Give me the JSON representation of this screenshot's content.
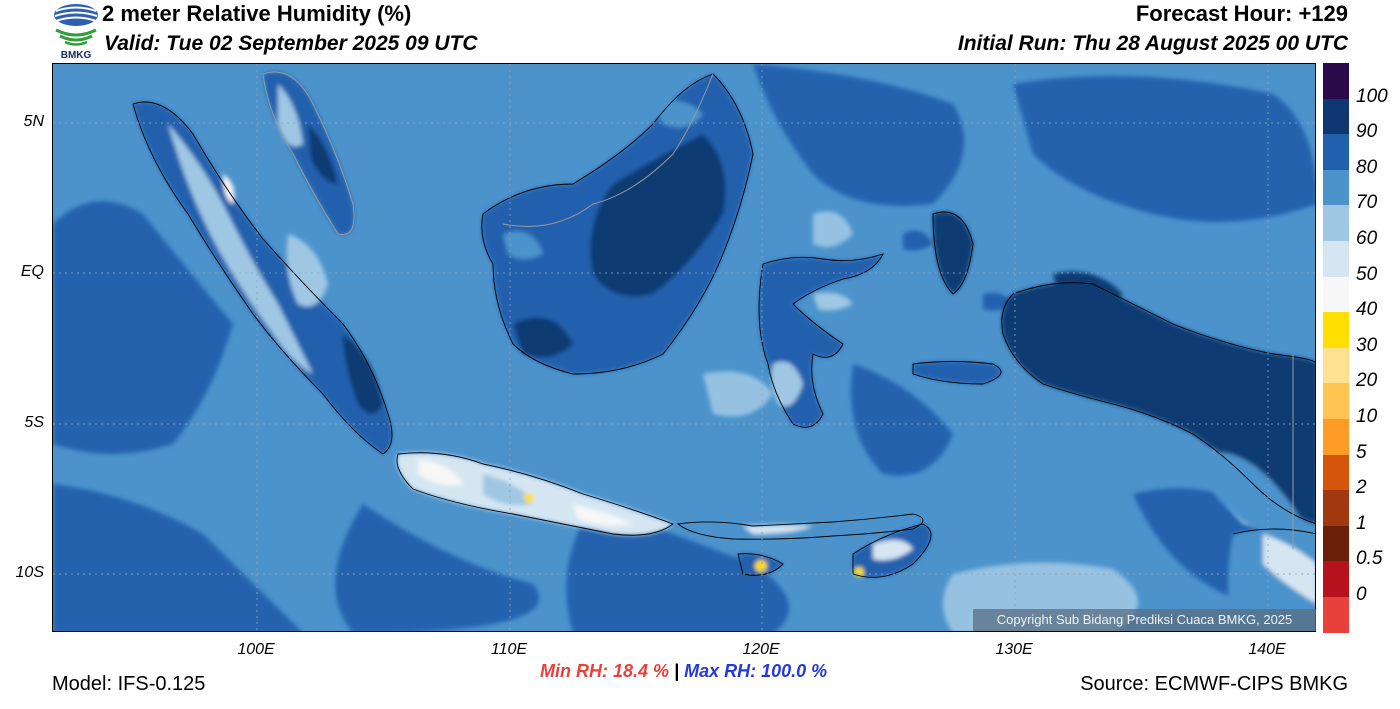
{
  "header": {
    "title": "2 meter Relative Humidity (%)",
    "valid": "Valid: Tue 02 September 2025 09 UTC",
    "forecast_hour": "Forecast Hour: +129",
    "initial_run": "Initial Run: Thu 28 August 2025 00 UTC",
    "logo_text": "BMKG"
  },
  "map": {
    "lat_labels": [
      "5N",
      "EQ",
      "5S",
      "10S"
    ],
    "lon_labels": [
      "100E",
      "110E",
      "120E",
      "130E",
      "140E"
    ],
    "ocean_color": "#4c93cc",
    "land_wet_color": "#1f63ad",
    "land_very_wet_color": "#103a72",
    "land_dry_color": "#9fc7e4",
    "grid": "dotted",
    "copyright": "Copyright Sub Bidang Prediksi Cuaca BMKG, 2025"
  },
  "colorbar": {
    "labels": [
      "100",
      "90",
      "80",
      "70",
      "60",
      "50",
      "40",
      "30",
      "20",
      "10",
      "5",
      "2",
      "1",
      "0.5",
      "0"
    ],
    "colors": [
      "#2a0a4a",
      "#0f3872",
      "#2060ad",
      "#4c93cc",
      "#9fc7e4",
      "#d5e6f2",
      "#f7f7f7",
      "#ffde00",
      "#ffe291",
      "#ffc451",
      "#ff9c26",
      "#d6550c",
      "#a03810",
      "#6b2008",
      "#b5121b",
      "#e8413c"
    ]
  },
  "stats": {
    "min_rh": "Min RH:  18.4 %",
    "separator": "|",
    "max_rh": "Max RH: 100.0 %"
  },
  "footer": {
    "model": "Model: IFS-0.125",
    "source": "Source: ECMWF-CIPS BMKG"
  }
}
